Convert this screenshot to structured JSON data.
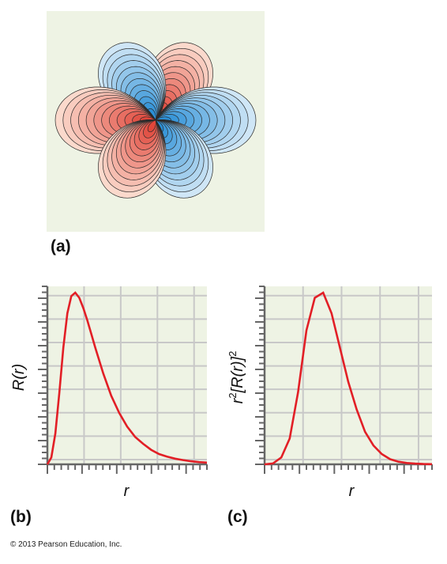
{
  "panel_a": {
    "label": "(a)",
    "background": "#eef3e4",
    "positive_color": "#e0463a",
    "negative_color": "#2b8fd6",
    "contour_levels": 12
  },
  "panel_b": {
    "label": "(b)",
    "xlabel": "r",
    "ylabel": "R(r)"
  },
  "panel_c": {
    "label": "(c)",
    "xlabel": "r",
    "ylabel_prefix": "r",
    "ylabel_sup1": "2",
    "ylabel_main": "[R(r)]",
    "ylabel_sup2": "2"
  },
  "chart_data": [
    {
      "type": "line",
      "xlabel": "r",
      "ylabel": "R(r)",
      "grid": true,
      "xlim": [
        0,
        10
      ],
      "ylim": [
        0,
        1
      ],
      "series": [
        {
          "x": [
            0,
            0.25,
            0.5,
            0.75,
            1,
            1.25,
            1.5,
            1.75,
            2,
            2.25,
            2.5,
            2.75,
            3,
            3.5,
            4,
            4.5,
            5,
            5.5,
            6,
            6.5,
            7,
            7.5,
            8,
            8.5,
            9,
            9.5,
            10
          ],
          "y": [
            0,
            0.04,
            0.18,
            0.42,
            0.68,
            0.88,
            0.98,
            1.0,
            0.97,
            0.91,
            0.84,
            0.76,
            0.68,
            0.53,
            0.4,
            0.3,
            0.22,
            0.16,
            0.12,
            0.085,
            0.06,
            0.045,
            0.033,
            0.025,
            0.018,
            0.013,
            0.01
          ]
        }
      ]
    },
    {
      "type": "line",
      "xlabel": "r",
      "ylabel": "r^2[R(r)]^2",
      "grid": true,
      "xlim": [
        0,
        10
      ],
      "ylim": [
        0,
        1
      ],
      "series": [
        {
          "x": [
            0,
            0.5,
            1,
            1.5,
            2,
            2.5,
            3,
            3.5,
            4,
            4.5,
            5,
            5.5,
            6,
            6.5,
            7,
            7.5,
            8,
            8.5,
            9,
            9.5,
            10
          ],
          "y": [
            0,
            0.005,
            0.04,
            0.15,
            0.42,
            0.78,
            0.97,
            1.0,
            0.88,
            0.68,
            0.48,
            0.32,
            0.19,
            0.11,
            0.06,
            0.03,
            0.015,
            0.008,
            0.004,
            0.002,
            0.001
          ]
        }
      ]
    }
  ],
  "copyright": "© 2013 Pearson Education, Inc."
}
